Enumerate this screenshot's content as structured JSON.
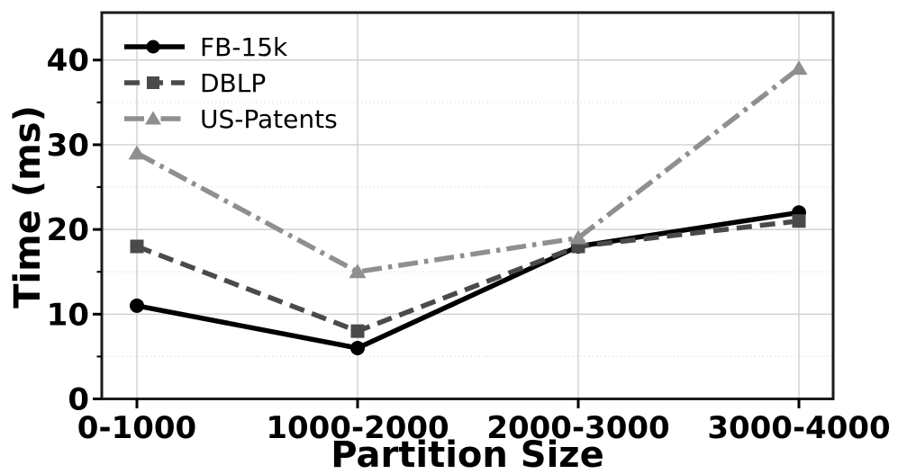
{
  "figure": {
    "kind": "matplotlib-style line chart",
    "background": "#ffffff"
  },
  "chart_data": {
    "type": "line",
    "title": "",
    "xlabel": "Partition Size",
    "ylabel": "Time (ms)",
    "categories": [
      "0-1000",
      "1000-2000",
      "2000-3000",
      "3000-4000"
    ],
    "series": [
      {
        "name": "FB-15k",
        "values": [
          11,
          6,
          18,
          22
        ],
        "color": "#000000",
        "linestyle": "solid",
        "marker": "circle"
      },
      {
        "name": "DBLP",
        "values": [
          18,
          8,
          18,
          21
        ],
        "color": "#4a4a4a",
        "linestyle": "dashed",
        "marker": "square"
      },
      {
        "name": "US-Patents",
        "values": [
          29,
          15,
          19,
          39
        ],
        "color": "#8f8f8f",
        "linestyle": "dashdot",
        "marker": "triangle"
      }
    ],
    "yticks": [
      0,
      10,
      20,
      30,
      40
    ],
    "yticks_minor": [
      5,
      15,
      25,
      35
    ],
    "ylim": [
      0,
      45.6
    ],
    "grid": {
      "major": true,
      "minor": true
    },
    "legend_position": "upper-left",
    "colors": {
      "spine": "#1a1a1a",
      "grid_major": "#d0d0d0",
      "grid_minor": "#e2e2e2",
      "tick": "#000000"
    }
  }
}
